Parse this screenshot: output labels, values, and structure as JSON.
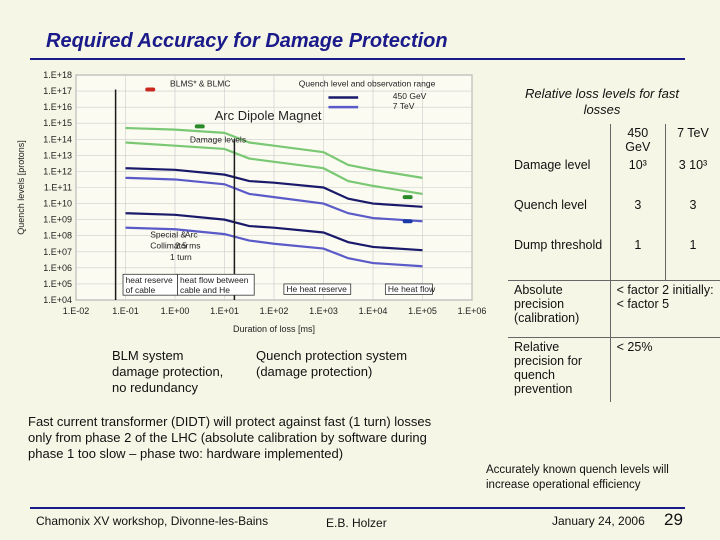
{
  "title": "Required Accuracy for Damage Protection",
  "chart_data": {
    "type": "line",
    "xlabel": "Duration of loss [ms]",
    "ylabel": "Quench levels [protons]",
    "x_ticks": [
      "1.E-02",
      "1.E-01",
      "1.E+00",
      "1.E+01",
      "1.E+02",
      "1.E+03",
      "1.E+04",
      "1.E+05",
      "1.E+06"
    ],
    "y_ticks": [
      "1.E+18",
      "1.E+17",
      "1.E+16",
      "1.E+15",
      "1.E+14",
      "1.E+13",
      "1.E+12",
      "1.E+11",
      "1.E+10",
      "1.E+09",
      "1.E+08",
      "1.E+07",
      "1.E+06",
      "1.E+05",
      "1.E+04"
    ],
    "annotations": {
      "blm": "BLMS* & BLMC",
      "quench_range": "Quench level and observation range",
      "legend_450": "450 GeV",
      "legend_7": "7 TeV",
      "magnet": "Arc Dipole Magnet",
      "damage": "Damage levels",
      "special_1": "Special &",
      "special_2": "Collimator",
      "special_3": "1 turn",
      "arc_1": "Arc",
      "arc_2": "2.5 ms",
      "heat_cable_1": "heat reserve",
      "heat_cable_2": "of cable",
      "heat_flow_1": "heat flow between",
      "heat_flow_2": "cable and He",
      "he_reserve": "He heat reserve",
      "he_flow": "He heat flow"
    },
    "series": [
      {
        "color": "#7ac873",
        "x": [
          -1,
          0,
          1,
          1.5,
          2,
          3,
          3.5,
          4,
          5
        ],
        "y": [
          14.7,
          14.6,
          14.4,
          13.8,
          13.6,
          13.2,
          12.4,
          12.1,
          11.6
        ]
      },
      {
        "color": "#7ac873",
        "x": [
          -1,
          0,
          1,
          1.5,
          2,
          3,
          3.5,
          4,
          5
        ],
        "y": [
          13.8,
          13.6,
          13.4,
          12.8,
          12.6,
          12.2,
          11.4,
          11.1,
          10.6
        ]
      },
      {
        "color": "#1a1a6a",
        "x": [
          -1,
          0,
          1,
          1.5,
          2,
          3,
          3.5,
          4,
          5
        ],
        "y": [
          12.2,
          12.1,
          11.8,
          11.4,
          11.3,
          11.0,
          10.3,
          10.0,
          9.8
        ]
      },
      {
        "color": "#5a5ac8",
        "x": [
          -1,
          0,
          1,
          1.5,
          2,
          3,
          3.5,
          4,
          5
        ],
        "y": [
          11.6,
          11.5,
          11.2,
          10.6,
          10.4,
          10.0,
          9.4,
          9.1,
          8.9
        ]
      },
      {
        "color": "#1a1a6a",
        "x": [
          -1,
          0,
          1,
          1.5,
          2,
          3,
          3.5,
          4,
          5
        ],
        "y": [
          9.4,
          9.3,
          9.0,
          8.6,
          8.5,
          8.2,
          7.6,
          7.3,
          7.1
        ]
      },
      {
        "color": "#5a5ac8",
        "x": [
          -1,
          0,
          1,
          1.5,
          2,
          3,
          3.5,
          4,
          5
        ],
        "y": [
          8.5,
          8.4,
          8.1,
          7.7,
          7.5,
          7.2,
          6.6,
          6.3,
          6.1
        ]
      }
    ],
    "markers": [
      {
        "color": "#c8281e",
        "x": -0.5,
        "y": 17.1
      },
      {
        "color": "#2a8a2a",
        "x": 0.5,
        "y": 14.8
      },
      {
        "color": "#2a8a2a",
        "x": 4.7,
        "y": 10.4
      },
      {
        "color": "#1a3aa8",
        "x": 4.7,
        "y": 8.9
      }
    ]
  },
  "left_notes": {
    "blm_1": "BLM system",
    "blm_2": "damage protection,",
    "blm_3": "no redundancy",
    "qps_1": "Quench protection system",
    "qps_2": "(damage protection)",
    "fct_1": "Fast current transformer (DIDT) will protect against fast (1 turn) losses",
    "fct_2": "only from phase 2 of the LHC (absolute calibration by software during",
    "fct_3": "phase 1 too slow – phase two: hardware implemented)"
  },
  "loss_table": {
    "heading": "Relative loss levels for fast losses",
    "col1": "450 GeV",
    "col2": "7 TeV",
    "rows": [
      {
        "label": "Damage level",
        "v1": "10³",
        "v2": "3 10³"
      },
      {
        "label": "Quench level",
        "v1": "3",
        "v2": "3"
      },
      {
        "label": "Dump threshold",
        "v1": "1",
        "v2": "1"
      },
      {
        "label": "Absolute precision (calibration)",
        "v1": "< factor 2 initially: < factor 5",
        "v2": ""
      },
      {
        "label": "Relative precision for quench prevention",
        "v1": "< 25%",
        "v2": ""
      }
    ],
    "note_1": "Accurately known quench levels will",
    "note_2": "increase operational efficiency"
  },
  "footer": {
    "venue": "Chamonix XV workshop, Divonne-les-Bains",
    "author": "E.B. Holzer",
    "date": "January 24, 2006",
    "page": "29"
  }
}
